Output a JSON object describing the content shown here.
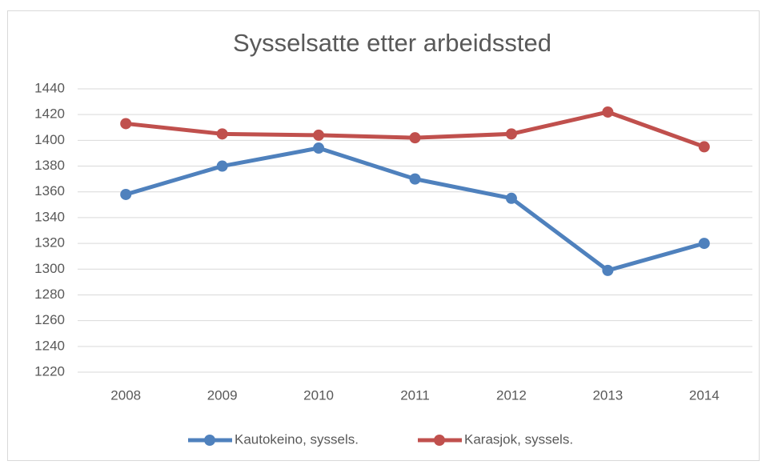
{
  "chart_data": {
    "type": "line",
    "title": "Sysselsatte etter arbeidssted",
    "categories": [
      "2008",
      "2009",
      "2010",
      "2011",
      "2012",
      "2013",
      "2014"
    ],
    "series": [
      {
        "name": "Kautokeino, syssels.",
        "color": "#4f81bd",
        "values": [
          1358,
          1380,
          1394,
          1370,
          1355,
          1299,
          1320
        ]
      },
      {
        "name": "Karasjok, syssels.",
        "color": "#c0504d",
        "values": [
          1413,
          1405,
          1404,
          1402,
          1405,
          1422,
          1395
        ]
      }
    ],
    "ylim": [
      1220,
      1440
    ],
    "yticks": [
      1220,
      1240,
      1260,
      1280,
      1300,
      1320,
      1340,
      1360,
      1380,
      1400,
      1420,
      1440
    ],
    "grid": true,
    "legend": "bottom"
  }
}
